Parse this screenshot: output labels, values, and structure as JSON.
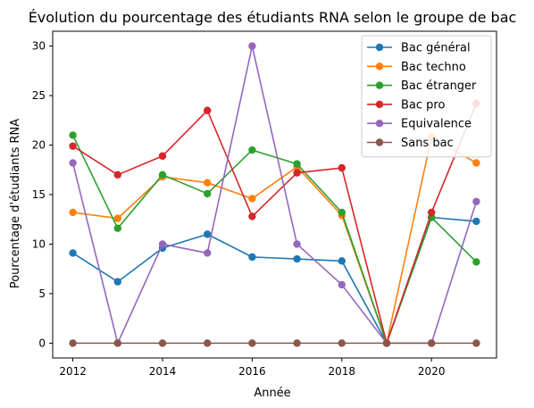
{
  "chart_data": {
    "type": "line",
    "title": "Évolution du pourcentage des étudiants RNA selon le groupe de bac",
    "xlabel": "Année",
    "ylabel": "Pourcentage d'étudiants RNA",
    "xlim": [
      2011.55,
      2021.45
    ],
    "ylim": [
      -1.5,
      31.5
    ],
    "xticks": [
      2012,
      2014,
      2016,
      2018,
      2020
    ],
    "yticks": [
      0,
      5,
      10,
      15,
      20,
      25,
      30
    ],
    "grid": false,
    "legend_position": "top-right",
    "x": [
      2012,
      2013,
      2014,
      2015,
      2016,
      2017,
      2018,
      2019,
      2020,
      2021
    ],
    "series": [
      {
        "name": "Bac général",
        "color": "#1f77b4",
        "values": [
          9.1,
          6.2,
          9.6,
          11.0,
          8.7,
          8.5,
          8.3,
          0,
          12.7,
          12.3
        ]
      },
      {
        "name": "Bac techno",
        "color": "#ff7f0e",
        "values": [
          13.2,
          12.6,
          16.8,
          16.2,
          14.6,
          17.8,
          12.9,
          0,
          20.8,
          18.2
        ]
      },
      {
        "name": "Bac étranger",
        "color": "#2ca02c",
        "values": [
          21.0,
          11.6,
          17.0,
          15.1,
          19.5,
          18.1,
          13.2,
          0,
          12.7,
          8.2
        ]
      },
      {
        "name": "Bac pro",
        "color": "#d62728",
        "values": [
          19.9,
          17.0,
          18.9,
          23.5,
          12.8,
          17.2,
          17.7,
          0,
          13.2,
          24.2
        ]
      },
      {
        "name": "Equivalence",
        "color": "#9467bd",
        "values": [
          18.2,
          0,
          10.0,
          9.1,
          30.0,
          10.0,
          5.9,
          0,
          0,
          14.3
        ]
      },
      {
        "name": "Sans bac",
        "color": "#8c564b",
        "values": [
          0,
          0,
          0,
          0,
          0,
          0,
          0,
          0,
          0,
          0
        ]
      }
    ]
  }
}
